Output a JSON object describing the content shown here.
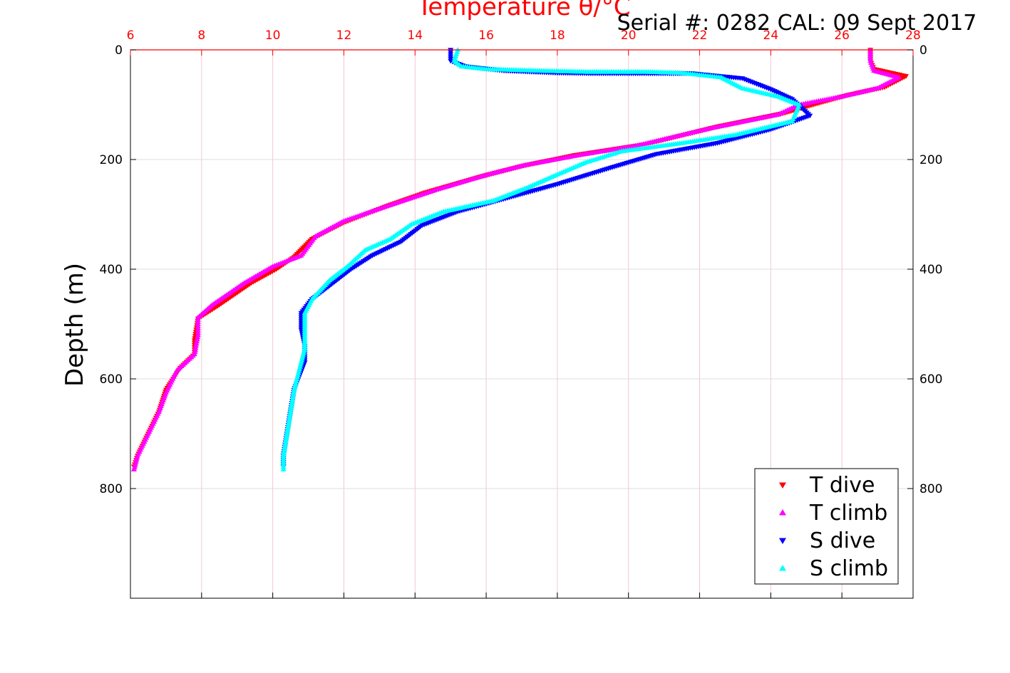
{
  "chart_data": {
    "type": "scatter",
    "title": "Temperature θ/°C",
    "subtitle": "Serial #: 0282  CAL: 09 Sept 2017",
    "xlabel": "Temperature θ/°C",
    "ylabel": "Depth (m)",
    "xlim": [
      6,
      28
    ],
    "ylim": [
      1000,
      0
    ],
    "x_ticks": [
      "6",
      "8",
      "10",
      "12",
      "14",
      "16",
      "18",
      "20",
      "22",
      "24",
      "26",
      "28"
    ],
    "y_ticks_left": [
      "0",
      "200",
      "400",
      "600",
      "800"
    ],
    "y_ticks_right": [
      "0",
      "200",
      "400",
      "600",
      "800"
    ],
    "y_axis_reversed": true,
    "grid": true,
    "legend_position": "bottom-right",
    "colors": {
      "t_axis": "#ff0000",
      "grid_x": "#f0c8d0",
      "grid_y": "#dddddd"
    },
    "series": [
      {
        "name": "T dive",
        "color": "#ff0000",
        "marker": "triangle-down",
        "points": [
          [
            26.8,
            0
          ],
          [
            26.8,
            20
          ],
          [
            26.9,
            35
          ],
          [
            27.8,
            48
          ],
          [
            27.2,
            68
          ],
          [
            26.2,
            82
          ],
          [
            25.3,
            98
          ],
          [
            24.4,
            115
          ],
          [
            22.5,
            140
          ],
          [
            20.5,
            172
          ],
          [
            18.5,
            192
          ],
          [
            17.0,
            212
          ],
          [
            15.8,
            232
          ],
          [
            14.3,
            260
          ],
          [
            13.2,
            285
          ],
          [
            12.0,
            315
          ],
          [
            11.1,
            345
          ],
          [
            10.6,
            378
          ],
          [
            10.1,
            400
          ],
          [
            9.4,
            425
          ],
          [
            8.5,
            465
          ],
          [
            7.9,
            490
          ],
          [
            7.8,
            530
          ],
          [
            7.8,
            555
          ],
          [
            7.4,
            580
          ],
          [
            7.0,
            620
          ],
          [
            6.8,
            660
          ],
          [
            6.5,
            700
          ],
          [
            6.2,
            740
          ],
          [
            6.1,
            760
          ]
        ]
      },
      {
        "name": "T climb",
        "color": "#ff00ff",
        "marker": "triangle-up",
        "points": [
          [
            26.8,
            0
          ],
          [
            26.8,
            20
          ],
          [
            26.9,
            38
          ],
          [
            27.6,
            50
          ],
          [
            27.0,
            70
          ],
          [
            26.0,
            85
          ],
          [
            24.8,
            100
          ],
          [
            24.2,
            118
          ],
          [
            22.3,
            143
          ],
          [
            20.2,
            175
          ],
          [
            18.6,
            192
          ],
          [
            17.1,
            210
          ],
          [
            16.0,
            228
          ],
          [
            14.6,
            255
          ],
          [
            13.3,
            283
          ],
          [
            12.0,
            312
          ],
          [
            11.2,
            340
          ],
          [
            10.8,
            375
          ],
          [
            10.0,
            395
          ],
          [
            9.2,
            425
          ],
          [
            8.3,
            465
          ],
          [
            7.9,
            488
          ],
          [
            7.9,
            520
          ],
          [
            7.8,
            555
          ],
          [
            7.3,
            585
          ],
          [
            7.0,
            625
          ],
          [
            6.8,
            660
          ],
          [
            6.5,
            700
          ],
          [
            6.2,
            740
          ],
          [
            6.1,
            765
          ]
        ]
      },
      {
        "name": "S dive",
        "color": "#0000ff",
        "marker": "triangle-down",
        "points": [
          [
            15.0,
            0
          ],
          [
            15.0,
            20
          ],
          [
            15.4,
            30
          ],
          [
            16.5,
            38
          ],
          [
            18.0,
            42
          ],
          [
            19.0,
            43
          ],
          [
            20.5,
            43
          ],
          [
            21.8,
            43
          ],
          [
            23.2,
            52
          ],
          [
            24.0,
            72
          ],
          [
            24.6,
            90
          ],
          [
            25.1,
            120
          ],
          [
            24.0,
            145
          ],
          [
            22.5,
            170
          ],
          [
            20.8,
            190
          ],
          [
            19.5,
            215
          ],
          [
            18.0,
            245
          ],
          [
            16.6,
            270
          ],
          [
            15.2,
            295
          ],
          [
            14.2,
            320
          ],
          [
            13.6,
            350
          ],
          [
            12.8,
            375
          ],
          [
            12.2,
            400
          ],
          [
            11.6,
            430
          ],
          [
            11.1,
            455
          ],
          [
            10.8,
            480
          ],
          [
            10.8,
            510
          ],
          [
            10.9,
            540
          ],
          [
            10.9,
            570
          ],
          [
            10.6,
            620
          ],
          [
            10.5,
            660
          ],
          [
            10.4,
            700
          ],
          [
            10.3,
            740
          ],
          [
            10.3,
            760
          ]
        ]
      },
      {
        "name": "S climb",
        "color": "#00ffff",
        "marker": "triangle-up",
        "points": [
          [
            15.2,
            0
          ],
          [
            15.1,
            20
          ],
          [
            15.3,
            30
          ],
          [
            16.0,
            35
          ],
          [
            17.5,
            38
          ],
          [
            18.8,
            40
          ],
          [
            20.5,
            40
          ],
          [
            21.5,
            42
          ],
          [
            22.6,
            50
          ],
          [
            23.2,
            70
          ],
          [
            24.2,
            85
          ],
          [
            24.8,
            100
          ],
          [
            24.6,
            130
          ],
          [
            23.0,
            155
          ],
          [
            21.5,
            170
          ],
          [
            19.8,
            185
          ],
          [
            18.8,
            205
          ],
          [
            17.9,
            230
          ],
          [
            17.2,
            250
          ],
          [
            16.2,
            275
          ],
          [
            14.8,
            295
          ],
          [
            13.9,
            318
          ],
          [
            13.3,
            345
          ],
          [
            12.6,
            365
          ],
          [
            12.1,
            395
          ],
          [
            11.6,
            420
          ],
          [
            11.1,
            455
          ],
          [
            10.9,
            480
          ],
          [
            10.9,
            515
          ],
          [
            10.9,
            545
          ],
          [
            10.8,
            570
          ],
          [
            10.6,
            620
          ],
          [
            10.5,
            660
          ],
          [
            10.4,
            700
          ],
          [
            10.3,
            740
          ],
          [
            10.3,
            765
          ]
        ]
      }
    ]
  }
}
